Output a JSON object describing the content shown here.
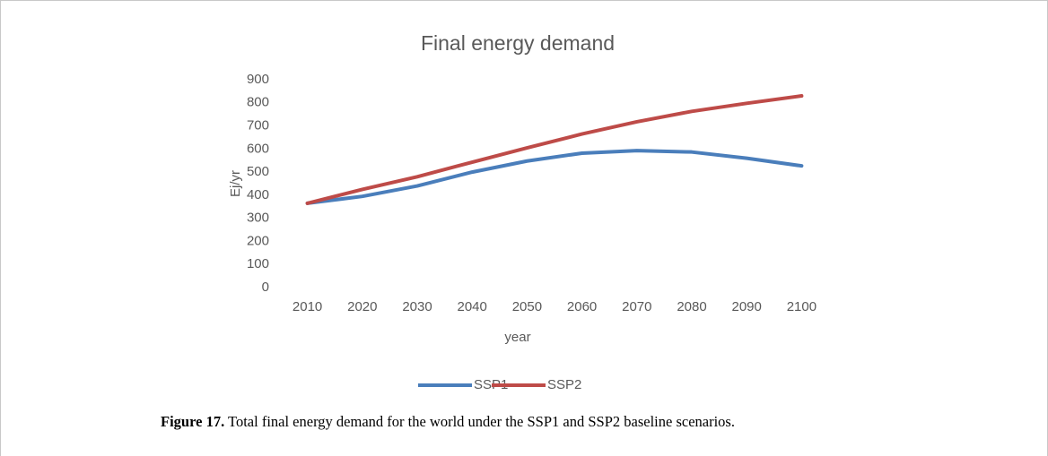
{
  "chart_data": {
    "type": "line",
    "title": "Final energy demand",
    "x_label": "year",
    "y_label": "Ej/yr",
    "categories": [
      "2010",
      "2020",
      "2030",
      "2040",
      "2050",
      "2060",
      "2070",
      "2080",
      "2090",
      "2100"
    ],
    "series": [
      {
        "name": "SSP1",
        "color": "#4a7ebb",
        "values": [
          365,
          395,
          440,
          500,
          548,
          582,
          593,
          587,
          560,
          527
        ]
      },
      {
        "name": "SSP2",
        "color": "#be4b48",
        "values": [
          365,
          425,
          480,
          543,
          605,
          665,
          718,
          763,
          798,
          830
        ]
      }
    ],
    "ylim": [
      0,
      900
    ],
    "yticks": [
      0,
      100,
      200,
      300,
      400,
      500,
      600,
      700,
      800,
      900
    ],
    "grid": false,
    "legend": "bottom"
  },
  "caption": {
    "label": "Figure 17.",
    "text": "Total final energy demand for the world under the SSP1 and SSP2 baseline scenarios."
  }
}
